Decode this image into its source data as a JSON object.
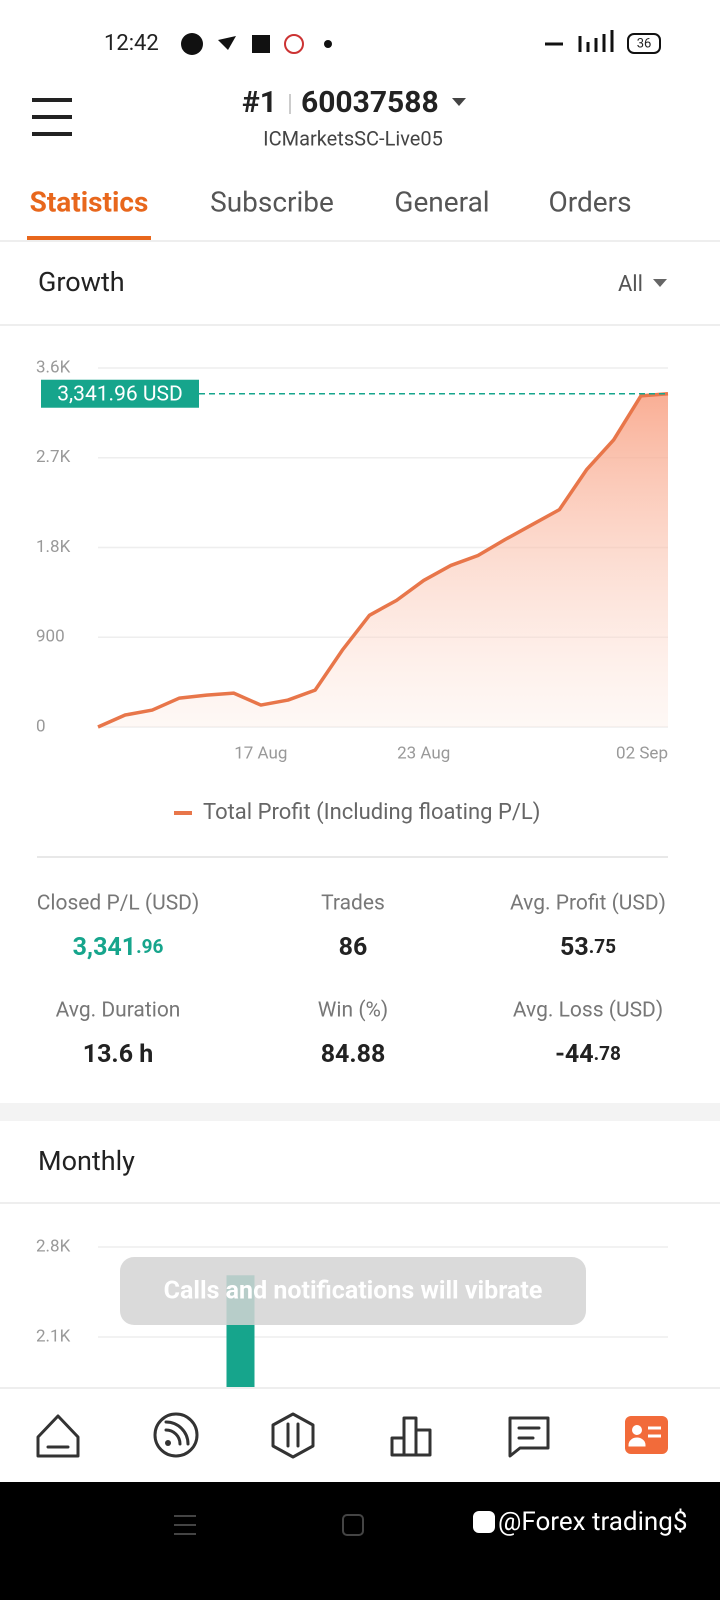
{
  "status_bar": {
    "time": "12:42",
    "battery": "36"
  },
  "header": {
    "account_number": "#1",
    "account_id": "60037588",
    "server": "ICMarketsSC-Live05"
  },
  "tabs": [
    "Statistics",
    "Subscribe",
    "General",
    "Orders"
  ],
  "chart_data": [
    {
      "type": "line",
      "title": "Growth",
      "filter": "All",
      "categories": [
        null,
        null,
        null,
        null,
        null,
        null,
        "17 Aug",
        null,
        null,
        null,
        null,
        null,
        "23 Aug",
        null,
        null,
        null,
        null,
        null,
        null,
        null,
        null,
        "02 Sep"
      ],
      "series": [
        {
          "name": "Total Profit (Including floating P/L)",
          "color": "#e8764a",
          "values": [
            0,
            120,
            170,
            290,
            320,
            340,
            220,
            270,
            370,
            770,
            1120,
            1270,
            1470,
            1620,
            1720,
            1880,
            2030,
            2180,
            2580,
            2880,
            3320,
            3341.96
          ]
        }
      ],
      "current_value_label": "3,341.96 USD",
      "current_value_color": "#16a58c",
      "ylim": [
        0,
        3600
      ],
      "yticks": [
        0,
        {
          "value": 900,
          "label": "900"
        },
        {
          "value": 1800,
          "label": "1.8K"
        },
        {
          "value": 2700,
          "label": "2.7K"
        },
        {
          "value": 3600,
          "label": "3.6K"
        }
      ],
      "grid": true
    },
    {
      "type": "bar",
      "title": "Monthly",
      "categories": [
        null
      ],
      "values": [
        2580
      ],
      "color": "#16a58c",
      "ylim": [
        0,
        2800
      ],
      "yticks": [
        {
          "value": 2100,
          "label": "2.1K"
        },
        {
          "value": 2800,
          "label": "2.8K"
        }
      ],
      "grid": true
    }
  ],
  "stats": [
    {
      "label": "Closed P/L (USD)",
      "value": "3,341",
      "fraction": ".96",
      "color": "#16a58c"
    },
    {
      "label": "Trades",
      "value": "86"
    },
    {
      "label": "Avg. Profit (USD)",
      "value": "53",
      "fraction": ".75"
    },
    {
      "label": "Avg. Duration",
      "value": "13.6 h"
    },
    {
      "label": "Win (%)",
      "value": "84.88"
    },
    {
      "label": "Avg. Loss (USD)",
      "value": "-44",
      "fraction": ".78"
    }
  ],
  "toast": "Calls and notifications will vibrate",
  "watermark": "@Forex trading$"
}
